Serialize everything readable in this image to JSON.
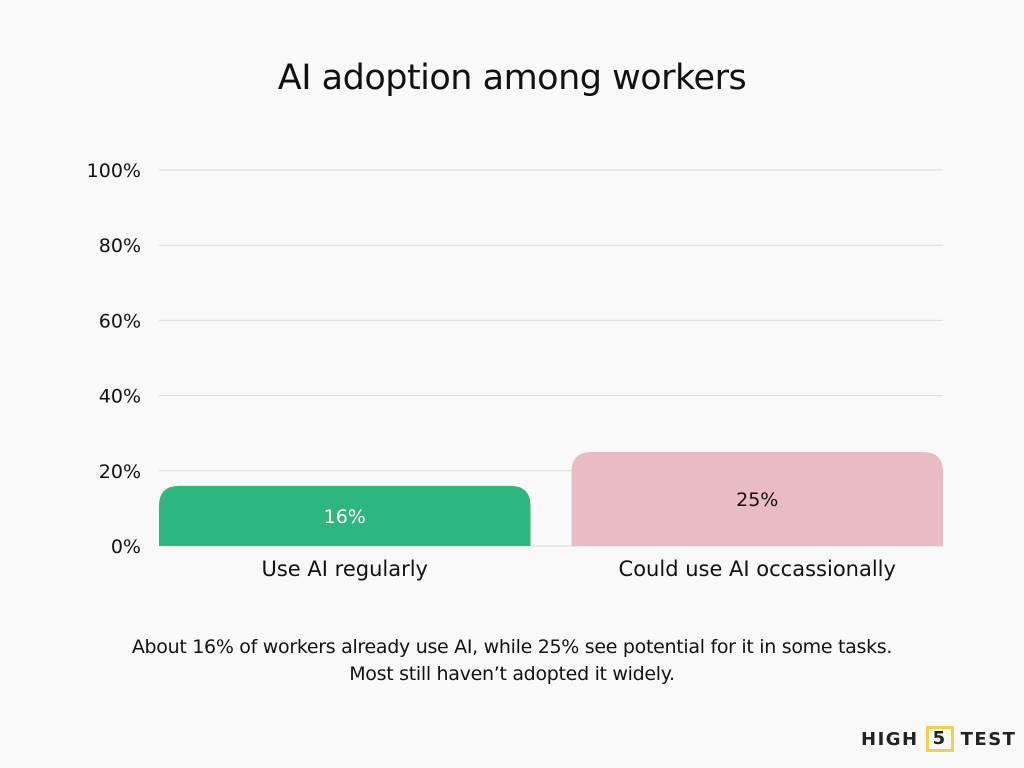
{
  "chart_data": {
    "type": "bar",
    "title": "AI adoption among workers",
    "categories": [
      "Use AI regularly",
      "Could use AI occassionally"
    ],
    "values": [
      16,
      25
    ],
    "data_labels": [
      "16%",
      "25%"
    ],
    "colors": [
      "#2eb77d",
      "#e9bbc3"
    ],
    "label_colors": [
      "#ffffff",
      "#111111"
    ],
    "ylim": [
      0,
      100
    ],
    "yticks": [
      0,
      20,
      40,
      60,
      80,
      100
    ],
    "ytick_labels": [
      "0%",
      "20%",
      "40%",
      "60%",
      "80%",
      "100%"
    ],
    "grid": true,
    "xlabel": "",
    "ylabel": ""
  },
  "caption": {
    "line1": "About 16% of workers already use AI, while 25% see potential for it in some tasks.",
    "line2": "Most still haven’t adopted it widely."
  },
  "logo": {
    "left": "HIGH",
    "mid": "5",
    "right": "TEST",
    "accent": "#f2d04a"
  }
}
